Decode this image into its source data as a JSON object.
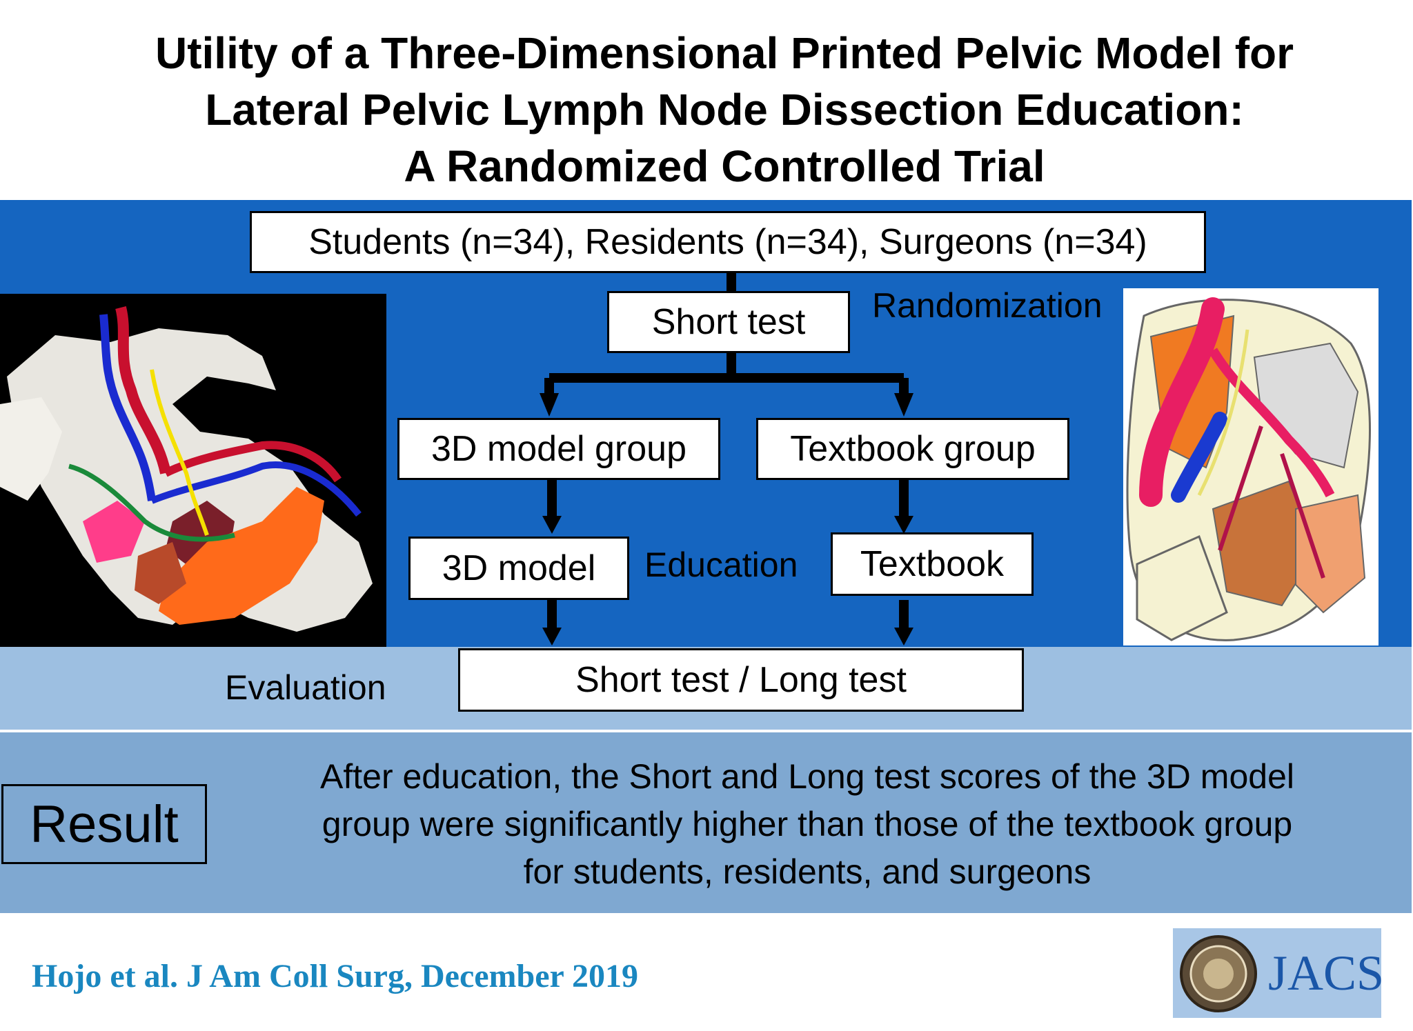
{
  "title": {
    "line1": "Utility of a Three-Dimensional Printed Pelvic Model for",
    "line2": "Lateral Pelvic Lymph Node Dissection Education:",
    "line3": "A Randomized Controlled Trial"
  },
  "flow": {
    "participants": "Students (n=34), Residents (n=34), Surgeons (n=34)",
    "short_test": "Short test",
    "randomization": "Randomization",
    "group_3d": "3D model group",
    "group_textbook": "Textbook group",
    "education_3d": "3D model",
    "education_label": "Education",
    "education_textbook": "Textbook",
    "evaluation_label": "Evaluation",
    "evaluation_box": "Short test / Long test"
  },
  "result": {
    "label": "Result",
    "line1": "After education, the Short and Long test scores of the 3D model",
    "line2": "group were significantly higher than those of the textbook group",
    "line3": "for students, residents, and surgeons"
  },
  "citation": "Hojo et al. J Am Coll Surg, December 2019",
  "journal": "JACS",
  "colors": {
    "band_blue": "#1565c0",
    "band_evaluation": "#9dbfe1",
    "band_result": "#7fa8d1",
    "citation": "#1a87c0",
    "journal": "#1a56a8"
  }
}
